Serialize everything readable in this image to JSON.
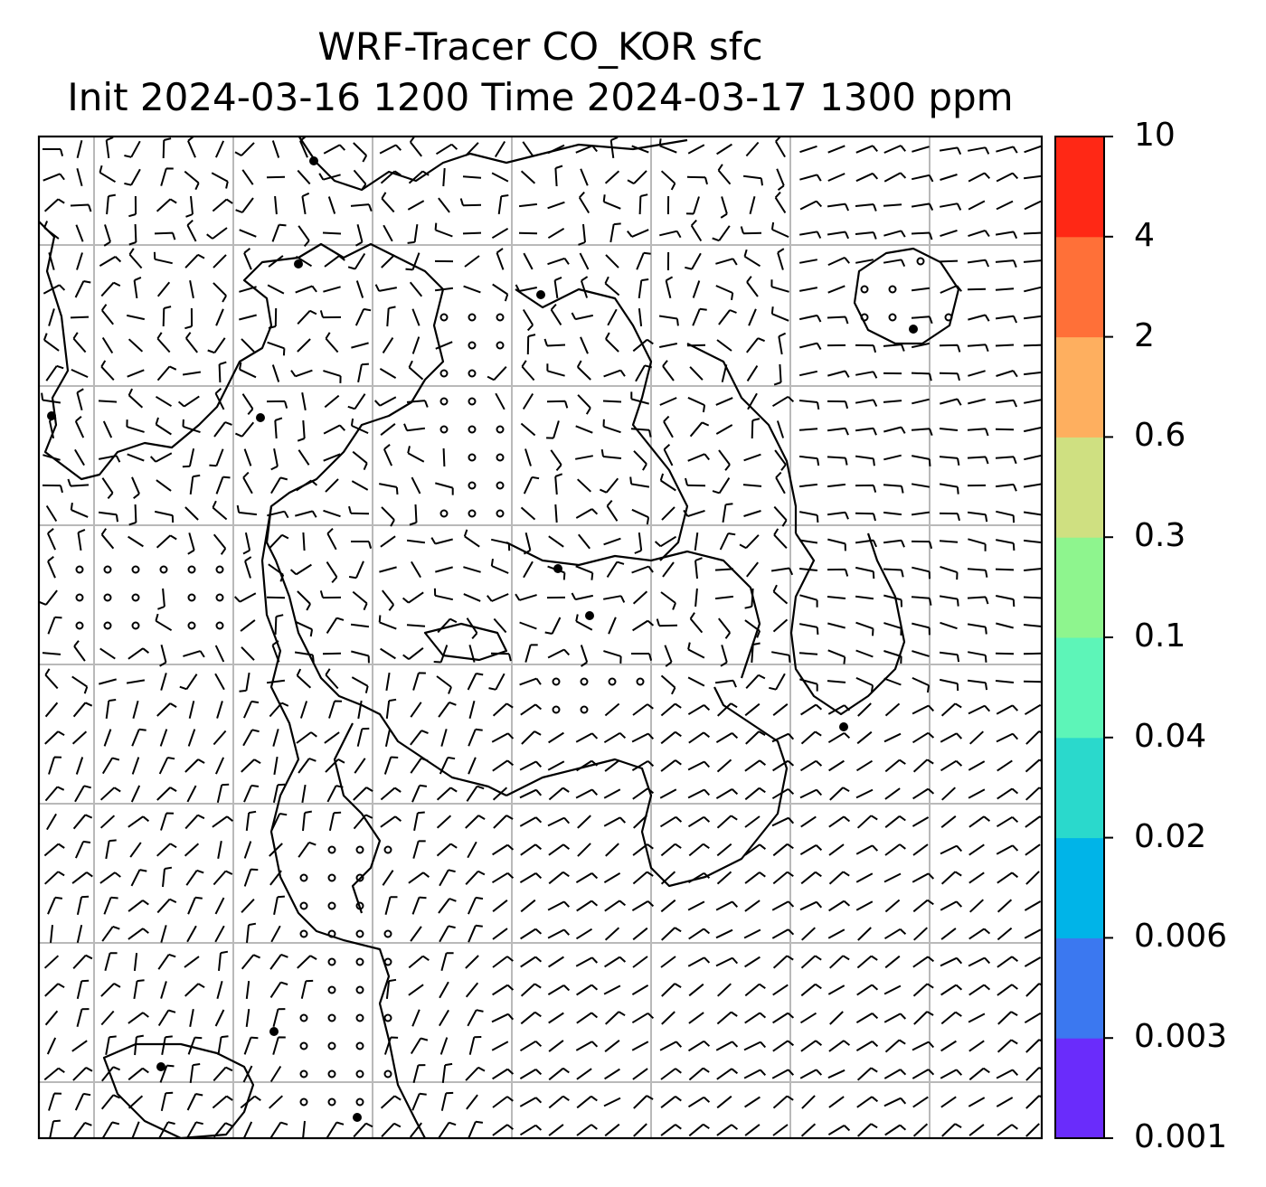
{
  "title": {
    "line1": "WRF-Tracer CO_KOR sfc",
    "line2": "Init 2024-03-16 1200 Time 2024-03-17 1300 ppm"
  },
  "colorbar": {
    "ticks": [
      "10",
      "4",
      "2",
      "0.6",
      "0.3",
      "0.1",
      "0.04",
      "0.02",
      "0.006",
      "0.003",
      "0.001"
    ],
    "colors": [
      "#6a2cfb",
      "#3b78f0",
      "#00b4e8",
      "#2ad9cc",
      "#5df5b8",
      "#8ef58e",
      "#cfe081",
      "#feaf5f",
      "#ff7038",
      "#ff2815"
    ]
  },
  "map": {
    "gridlines": true,
    "wind_barbs": true,
    "coastlines": true,
    "grid_color": "#b9b9b9",
    "line_color": "#000000"
  }
}
